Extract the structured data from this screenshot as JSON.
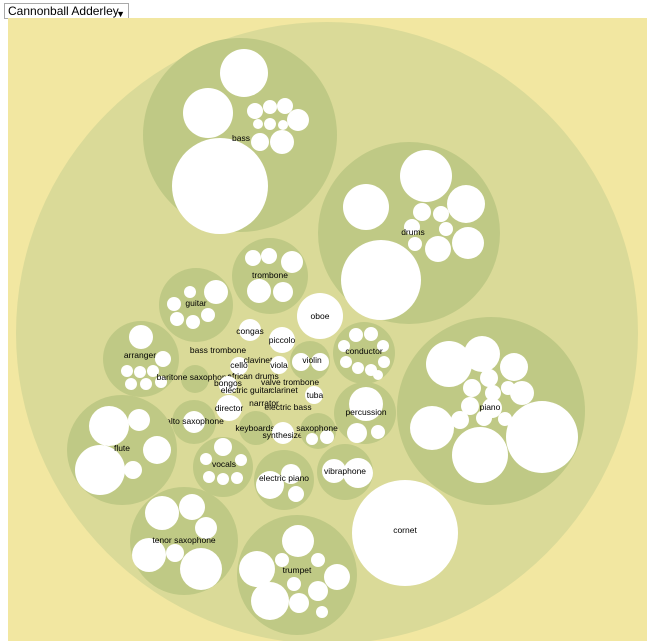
{
  "artist_select": {
    "value": "Cannonball Adderley"
  },
  "colors": {
    "background": "#f2e7a1",
    "root": "#dada98",
    "group": "#bfc985",
    "leaf": "#ffffff"
  },
  "labels": {
    "bass": "bass",
    "drums": "drums",
    "trombone": "trombone",
    "guitar": "guitar",
    "oboe": "oboe",
    "congas": "congas",
    "piccolo": "piccolo",
    "arranger": "arranger",
    "bass_trombone": "bass trombone",
    "cello": "cello",
    "clavinet": "clavinet",
    "viola": "viola",
    "violin": "violin",
    "conductor": "conductor",
    "baritone_saxophone": "baritone saxophone",
    "african_drums": "african drums",
    "bongos": "bongos",
    "valve_trombone": "valve trombone",
    "electric_guitar": "electric guitar",
    "clarinet": "clarinet",
    "tuba": "tuba",
    "piano": "piano",
    "narrator": "narrator",
    "director": "director",
    "electric_bass": "electric bass",
    "percussion": "percussion",
    "alto_saxophone": "alto saxophone",
    "keyboards": "keyboards",
    "saxophone": "saxophone",
    "synthesizer": "synthesizer",
    "flute": "flute",
    "vocals": "vocals",
    "vibraphone": "vibraphone",
    "electric_piano": "electric piano",
    "cornet": "cornet",
    "tenor_saxophone": "tenor saxophone",
    "trumpet": "trumpet"
  }
}
